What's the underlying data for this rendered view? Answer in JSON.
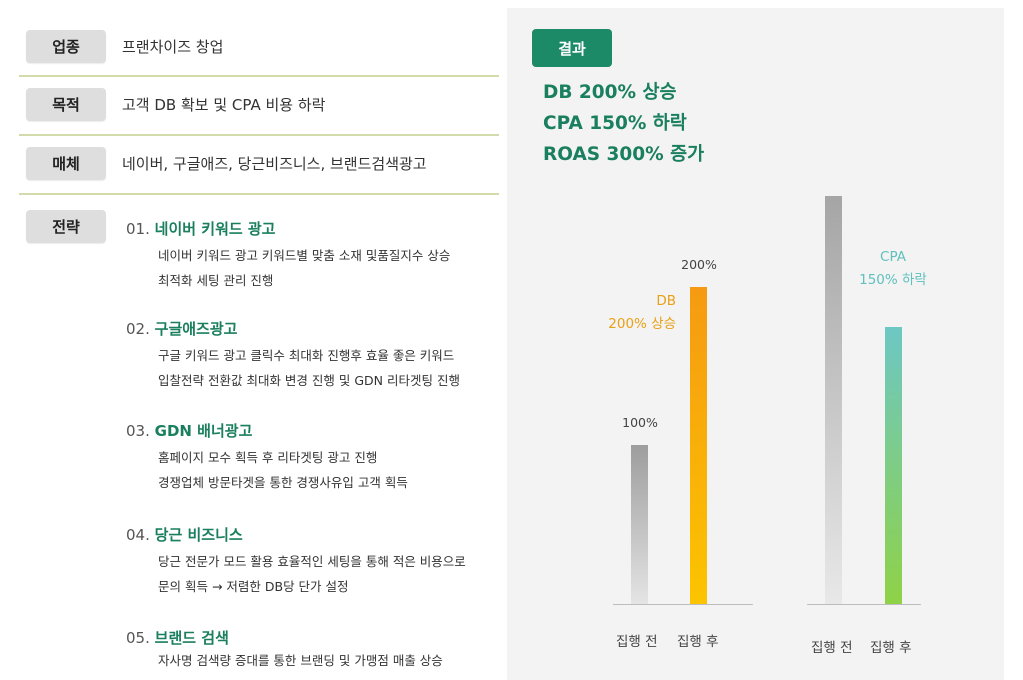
{
  "rows": [
    {
      "label": "업종",
      "value": "프랜차이즈 창업"
    },
    {
      "label": "목적",
      "value": "고객 DB 확보 및 CPA 비용 하락"
    },
    {
      "label": "매체",
      "value": "네이버, 구글애즈, 당근비즈니스, 브랜드검색광고"
    }
  ],
  "strategy": {
    "label": "전략",
    "items": [
      {
        "num": "01.",
        "title": "네이버 키워드 광고",
        "lines": [
          "네이버 키워드 광고 키워드별 맞춤 소재 및품질지수 상승",
          "최적화 세팅 관리 진행"
        ]
      },
      {
        "num": "02.",
        "title": "구글애즈광고",
        "lines": [
          "구글 키워드 광고 클릭수 최대화 진행후 효율 좋은 키워드",
          "입찰전략 전환값 최대화 변경 진행 및 GDN 리타겟팅 진행"
        ]
      },
      {
        "num": "03.",
        "title": "GDN 배너광고",
        "lines": [
          "홈페이지 모수 획득 후 리타겟팅 광고 진행",
          "경쟁업체 방문타겟을 통한 경쟁사유입 고객 획득"
        ]
      },
      {
        "num": "04.",
        "title": "당근 비즈니스",
        "lines": [
          "당근 전문가 모드 활용 효율적인 세팅을 통해 적은 비용으로",
          "문의 획득 → 저렴한 DB당 단가 설정"
        ]
      },
      {
        "num": "05.",
        "title": "브랜드 검색",
        "lines": [
          "자사명 검색량 증대를 통한 브랜딩 및 가맹점 매출 상승"
        ]
      }
    ]
  },
  "result": {
    "badge": "결과",
    "lines": [
      "DB 200% 상승",
      "CPA 150% 하락",
      "ROAS 300% 증가"
    ]
  },
  "chart_data": [
    {
      "type": "bar",
      "categories": [
        "집행 전",
        "집행 후"
      ],
      "values": [
        100,
        200
      ],
      "data_labels": [
        "100%",
        "200%"
      ],
      "annotation": [
        "DB",
        "200% 상승"
      ],
      "colors": [
        "#a0a0a0",
        "#f7a90c"
      ],
      "title": "",
      "xlabel": "",
      "ylabel": "",
      "ylim": [
        0,
        230
      ]
    },
    {
      "type": "bar",
      "categories": [
        "집행 전",
        "집행 후"
      ],
      "values": [
        100,
        68
      ],
      "annotation": [
        "CPA",
        "150% 하락"
      ],
      "colors": [
        "#a8a8a8",
        "#7ccc9c"
      ],
      "title": "",
      "xlabel": "",
      "ylabel": "",
      "ylim": [
        0,
        100
      ]
    }
  ]
}
